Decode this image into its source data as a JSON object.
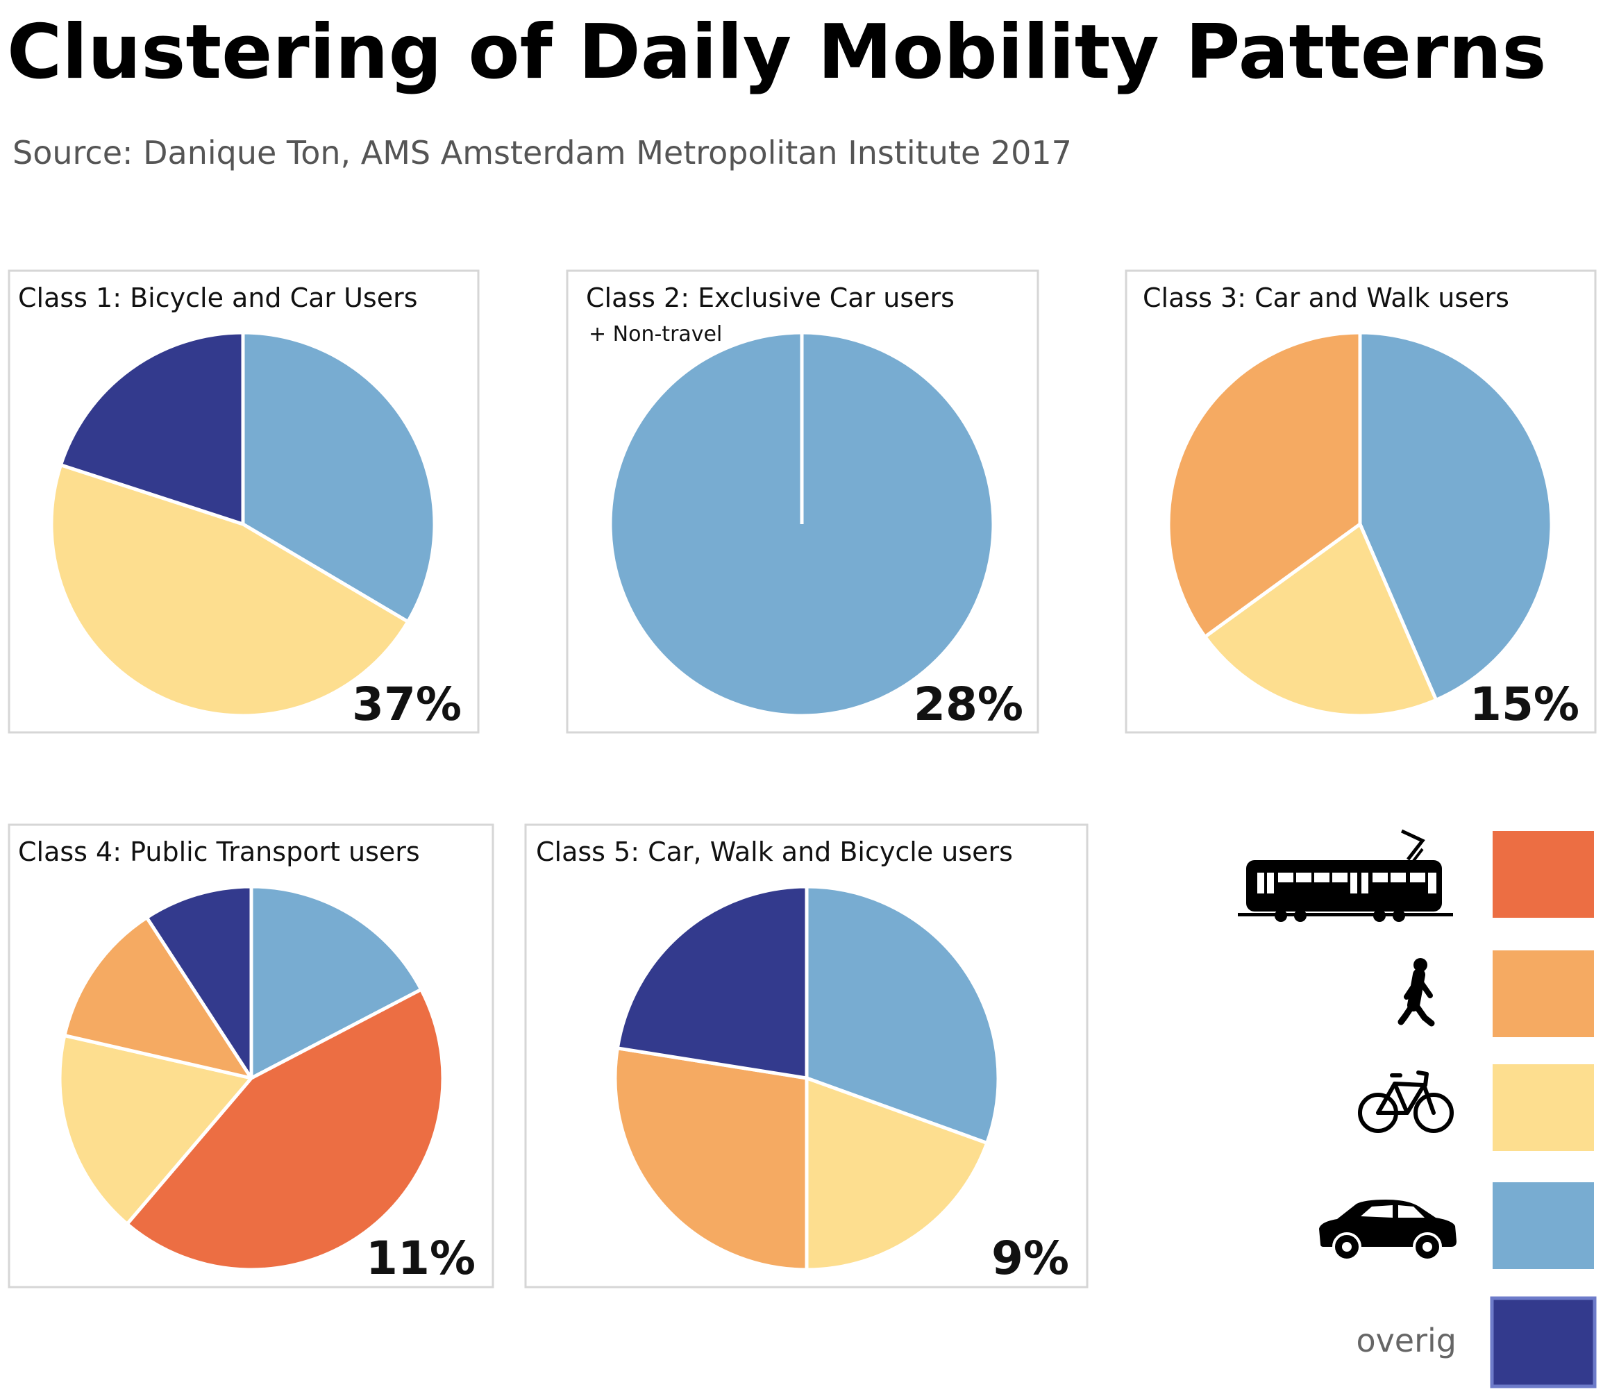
{
  "title": "Clustering of Daily Mobility Patterns",
  "source": "Source: Danique Ton, AMS Amsterdam Metropolitan Institute 2017",
  "colors": {
    "public_transport": "#EC6E43",
    "walk": "#F5AA62",
    "bicycle": "#FDDE8F",
    "car": "#78ACD1",
    "other": "#333A8D"
  },
  "legend": [
    {
      "key": "public_transport",
      "icon": "tram-icon",
      "label": ""
    },
    {
      "key": "walk",
      "icon": "walking-person-icon",
      "label": ""
    },
    {
      "key": "bicycle",
      "icon": "bicycle-icon",
      "label": ""
    },
    {
      "key": "car",
      "icon": "car-icon",
      "label": ""
    },
    {
      "key": "other",
      "icon": "",
      "label": "overig"
    }
  ],
  "chart_data": [
    {
      "type": "pie",
      "title": "Class 1: Bicycle and Car Users",
      "note": "",
      "share": "37%",
      "slices": [
        {
          "key": "car",
          "value": 33.5
        },
        {
          "key": "bicycle",
          "value": 46.5
        },
        {
          "key": "other",
          "value": 20.0
        }
      ]
    },
    {
      "type": "pie",
      "title": "Class 2: Exclusive Car users",
      "note": "+ Non-travel",
      "share": "28%",
      "slices": [
        {
          "key": "car",
          "value": 100
        }
      ]
    },
    {
      "type": "pie",
      "title": "Class 3: Car and Walk users",
      "note": "",
      "share": "15%",
      "slices": [
        {
          "key": "car",
          "value": 43.5
        },
        {
          "key": "bicycle",
          "value": 21.5
        },
        {
          "key": "walk",
          "value": 35.0
        }
      ]
    },
    {
      "type": "pie",
      "title": "Class 4: Public Transport users",
      "note": "",
      "share": "11%",
      "slices": [
        {
          "key": "car",
          "value": 17.0
        },
        {
          "key": "public_transport",
          "value": 43.0
        },
        {
          "key": "bicycle",
          "value": 17.0
        },
        {
          "key": "walk",
          "value": 12.0
        },
        {
          "key": "other",
          "value": 9.0
        }
      ]
    },
    {
      "type": "pie",
      "title": "Class 5: Car, Walk and Bicycle users",
      "note": "",
      "share": "9%",
      "slices": [
        {
          "key": "car",
          "value": 30.5
        },
        {
          "key": "bicycle",
          "value": 19.5
        },
        {
          "key": "walk",
          "value": 27.5
        },
        {
          "key": "other",
          "value": 22.5
        }
      ]
    }
  ]
}
